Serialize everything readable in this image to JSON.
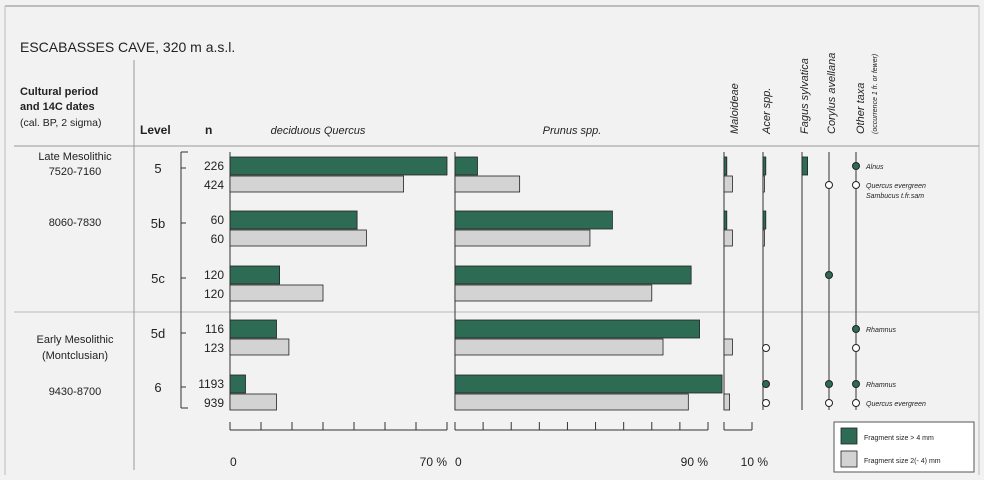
{
  "title": "ESCABASSES CAVE, 320 m a.s.l.",
  "header": {
    "period_lines": [
      "Cultural period",
      "and 14C dates",
      "(cal. BP, 2 sigma)"
    ],
    "level_label": "Level",
    "n_label": "n"
  },
  "periods": [
    {
      "name": "Late Mesolithic",
      "dates": "7520-7160"
    },
    {
      "name": "",
      "dates": "8060-7830"
    },
    {
      "name": "Early Mesolithic",
      "dates": "(Montclusian)"
    },
    {
      "name": "",
      "dates": "9430-8700"
    }
  ],
  "colors": {
    "large": "#2e6b55",
    "small": "#d3d3d3"
  },
  "chart_data": {
    "type": "bar",
    "title": "ESCABASSES CAVE, 320 m a.s.l.",
    "levels": [
      "5",
      "5b",
      "5c",
      "5d",
      "6"
    ],
    "n": [
      {
        "large": 226,
        "small": 424
      },
      {
        "large": 60,
        "small": 60
      },
      {
        "large": 120,
        "small": 120
      },
      {
        "large": 116,
        "small": 123
      },
      {
        "large": 1193,
        "small": 939
      }
    ],
    "series": [
      {
        "name": "Fragment size > 4 mm",
        "color": "#2e6b55"
      },
      {
        "name": "Fragment size 2(- 4) mm",
        "color": "#d3d3d3"
      }
    ],
    "taxa": [
      {
        "name": "deciduous Quercus",
        "axis_labels": [
          "0",
          "70 %"
        ],
        "xlim": [
          0,
          70
        ],
        "large": [
          70,
          41,
          16,
          15,
          5
        ],
        "small": [
          56,
          44,
          30,
          19,
          15
        ]
      },
      {
        "name": "Prunus spp.",
        "axis_labels": [
          "0",
          "90 %"
        ],
        "xlim": [
          0,
          90
        ],
        "large": [
          8,
          56,
          84,
          87,
          95
        ],
        "small": [
          23,
          48,
          70,
          74,
          83
        ]
      },
      {
        "name": "Maloideae",
        "axis_labels": [
          "10 %"
        ],
        "xlim": [
          0,
          10
        ],
        "large": [
          1,
          1,
          0,
          0,
          0
        ],
        "small": [
          3,
          3,
          0,
          3,
          2
        ]
      },
      {
        "name": "Acer spp.",
        "large": [
          1,
          1,
          0,
          0,
          0
        ],
        "small": [
          0.5,
          0.5,
          0,
          0,
          0
        ]
      },
      {
        "name": "Fagus sylvatica",
        "large": [
          2,
          0,
          0,
          0,
          0
        ],
        "small": [
          0,
          0,
          0,
          0,
          0
        ]
      },
      {
        "name": "Corylus avellana",
        "large": [
          0,
          0,
          0,
          0,
          0
        ],
        "small": [
          0,
          0,
          0,
          0,
          0
        ]
      }
    ],
    "point_taxa": [
      {
        "name": "Acer spp.",
        "points": [
          {
            "level": "5d",
            "size": "small",
            "filled": false
          },
          {
            "level": "6",
            "size": "large",
            "filled": true
          },
          {
            "level": "6",
            "size": "small",
            "filled": false
          }
        ]
      },
      {
        "name": "Corylus avellana",
        "points": [
          {
            "level": "5",
            "size": "small",
            "filled": false
          },
          {
            "level": "5c",
            "size": "large",
            "filled": true
          },
          {
            "level": "6",
            "size": "large",
            "filled": true
          },
          {
            "level": "6",
            "size": "small",
            "filled": false
          }
        ]
      },
      {
        "name": "Other taxa",
        "points": [
          {
            "level": "5",
            "size": "large",
            "filled": true,
            "label": "Alnus"
          },
          {
            "level": "5",
            "size": "small",
            "filled": false,
            "label": "Quercus evergreen"
          },
          {
            "level": "5d",
            "size": "large",
            "filled": true,
            "label": "Rhamnus"
          },
          {
            "level": "5d",
            "size": "small",
            "filled": false,
            "label": ""
          },
          {
            "level": "6",
            "size": "large",
            "filled": true,
            "label": "Rhamnus"
          },
          {
            "level": "6",
            "size": "small",
            "filled": false,
            "label": "Quercus evergreen"
          }
        ]
      }
    ],
    "other_taxa_header": {
      "name": "Other taxa",
      "note": "(occurrence 1 fr. or fewer)"
    },
    "other_notes": [
      "Sambucus t.fr.sam"
    ],
    "legend": [
      "Fragment size > 4 mm",
      "Fragment size 2(- 4) mm"
    ]
  }
}
